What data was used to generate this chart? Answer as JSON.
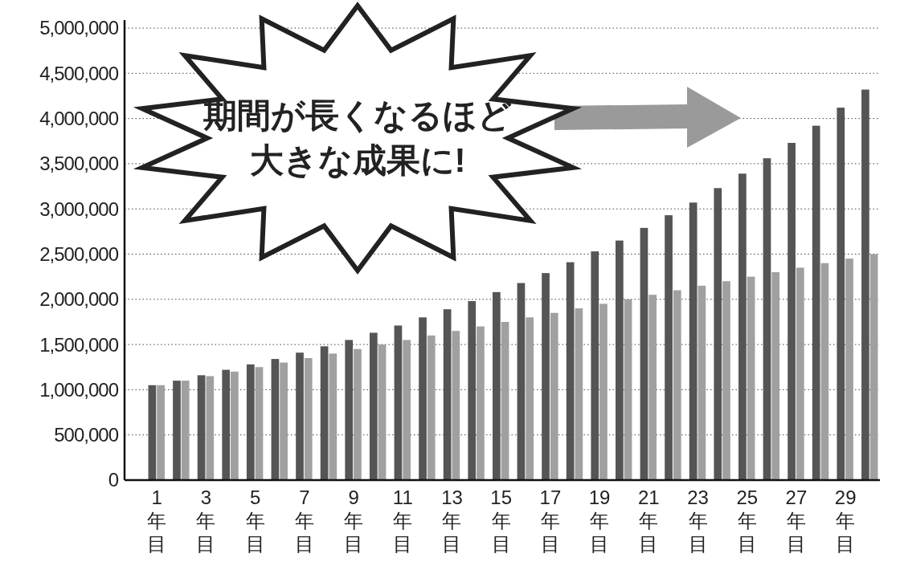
{
  "chart_data": {
    "type": "bar",
    "categories": [
      "1年目",
      null,
      "3年目",
      null,
      "5年目",
      null,
      "7年目",
      null,
      "9年目",
      null,
      "11年目",
      null,
      "13年目",
      null,
      "15年目",
      null,
      "17年目",
      null,
      "19年目",
      null,
      "21年目",
      null,
      "23年目",
      null,
      "25年目",
      null,
      "27年目",
      null,
      "29年目",
      null
    ],
    "series": [
      {
        "color": "#555555",
        "values": [
          1050000,
          1100000,
          1160000,
          1220000,
          1280000,
          1340000,
          1410000,
          1480000,
          1550000,
          1630000,
          1710000,
          1800000,
          1890000,
          1980000,
          2080000,
          2180000,
          2290000,
          2410000,
          2530000,
          2650000,
          2790000,
          2930000,
          3070000,
          3230000,
          3390000,
          3560000,
          3730000,
          3920000,
          4120000,
          4320000
        ]
      },
      {
        "color": "#a0a0a0",
        "values": [
          1050000,
          1100000,
          1150000,
          1200000,
          1250000,
          1300000,
          1350000,
          1400000,
          1450000,
          1500000,
          1550000,
          1600000,
          1650000,
          1700000,
          1750000,
          1800000,
          1850000,
          1900000,
          1950000,
          2000000,
          2050000,
          2100000,
          2150000,
          2200000,
          2250000,
          2300000,
          2350000,
          2400000,
          2450000,
          2500000
        ]
      }
    ],
    "ylim": [
      0,
      5000000
    ],
    "yticks": [
      {
        "value": 0,
        "label": "0"
      },
      {
        "value": 500000,
        "label": "500,000"
      },
      {
        "value": 1000000,
        "label": "1,000,000"
      },
      {
        "value": 1500000,
        "label": "1,500,000"
      },
      {
        "value": 2000000,
        "label": "2,000,000"
      },
      {
        "value": 2500000,
        "label": "2,500,000"
      },
      {
        "value": 3000000,
        "label": "3,000,000"
      },
      {
        "value": 3500000,
        "label": "3,500,000"
      },
      {
        "value": 4000000,
        "label": "4,000,000"
      },
      {
        "value": 4500000,
        "label": "4,500,000"
      },
      {
        "value": 5000000,
        "label": "5,000,000"
      }
    ],
    "grid": "y",
    "annotations": [
      "期間が長くなるほど",
      "大きな成果に!"
    ]
  }
}
